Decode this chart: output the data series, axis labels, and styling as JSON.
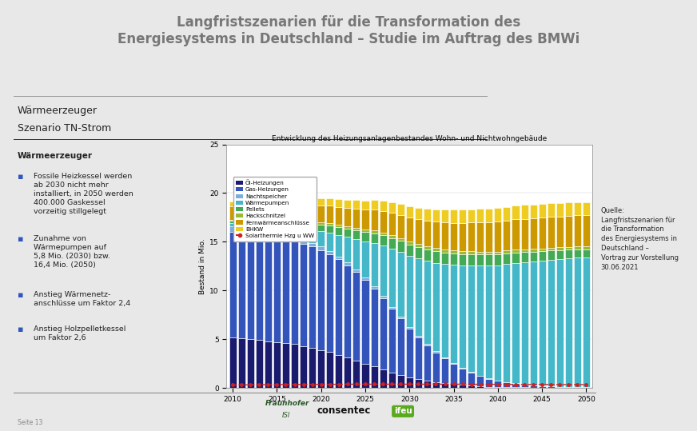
{
  "title": "Langfristszenarien für die Transformation des\nEnergiesystems in Deutschland – Studie im Auftrag des BMWi",
  "chart_title": "Entwicklung des Heizungsanlagenbestandes Wohn- und Nichtwohngebäude",
  "ylabel": "Bestand in Mio.",
  "subtitle_line1": "Wärmeerzeuger",
  "subtitle_line2": "Szenario TN-Strom",
  "years": [
    2010,
    2011,
    2012,
    2013,
    2014,
    2015,
    2016,
    2017,
    2018,
    2019,
    2020,
    2021,
    2022,
    2023,
    2024,
    2025,
    2026,
    2027,
    2028,
    2029,
    2030,
    2031,
    2032,
    2033,
    2034,
    2035,
    2036,
    2037,
    2038,
    2039,
    2040,
    2041,
    2042,
    2043,
    2044,
    2045,
    2046,
    2047,
    2048,
    2049,
    2050
  ],
  "oel": [
    5.2,
    5.1,
    5.0,
    4.9,
    4.8,
    4.7,
    4.6,
    4.5,
    4.3,
    4.1,
    3.9,
    3.7,
    3.4,
    3.1,
    2.8,
    2.5,
    2.2,
    1.9,
    1.6,
    1.35,
    1.1,
    0.9,
    0.75,
    0.6,
    0.48,
    0.38,
    0.3,
    0.23,
    0.17,
    0.13,
    0.1,
    0.08,
    0.06,
    0.05,
    0.04,
    0.03,
    0.03,
    0.02,
    0.02,
    0.01,
    0.01
  ],
  "gas": [
    10.8,
    10.85,
    10.85,
    10.8,
    10.75,
    10.7,
    10.65,
    10.6,
    10.5,
    10.4,
    10.25,
    10.05,
    9.8,
    9.5,
    9.1,
    8.6,
    8.0,
    7.3,
    6.55,
    5.8,
    5.0,
    4.3,
    3.65,
    3.05,
    2.55,
    2.1,
    1.7,
    1.35,
    1.05,
    0.82,
    0.62,
    0.48,
    0.37,
    0.28,
    0.21,
    0.16,
    0.12,
    0.09,
    0.07,
    0.05,
    0.04
  ],
  "nachtspeicher": [
    0.55,
    0.53,
    0.51,
    0.49,
    0.47,
    0.45,
    0.43,
    0.41,
    0.39,
    0.37,
    0.35,
    0.33,
    0.31,
    0.29,
    0.27,
    0.25,
    0.23,
    0.21,
    0.19,
    0.17,
    0.15,
    0.13,
    0.11,
    0.1,
    0.09,
    0.08,
    0.07,
    0.06,
    0.06,
    0.05,
    0.05,
    0.04,
    0.04,
    0.03,
    0.03,
    0.03,
    0.02,
    0.02,
    0.02,
    0.02,
    0.02
  ],
  "waermepumpen": [
    0.35,
    0.4,
    0.45,
    0.52,
    0.6,
    0.7,
    0.85,
    1.0,
    1.18,
    1.38,
    1.6,
    1.88,
    2.2,
    2.6,
    3.1,
    3.7,
    4.45,
    5.2,
    5.95,
    6.65,
    7.3,
    7.95,
    8.55,
    9.1,
    9.6,
    10.05,
    10.5,
    10.9,
    11.25,
    11.55,
    11.8,
    12.1,
    12.35,
    12.55,
    12.7,
    12.85,
    13.0,
    13.1,
    13.2,
    13.3,
    13.35
  ],
  "pellets": [
    0.28,
    0.3,
    0.33,
    0.36,
    0.4,
    0.44,
    0.49,
    0.54,
    0.59,
    0.64,
    0.69,
    0.74,
    0.79,
    0.85,
    0.9,
    0.96,
    1.01,
    1.06,
    1.1,
    1.13,
    1.16,
    1.18,
    1.19,
    1.2,
    1.2,
    1.19,
    1.18,
    1.17,
    1.15,
    1.13,
    1.11,
    1.08,
    1.05,
    1.02,
    0.99,
    0.96,
    0.93,
    0.9,
    0.87,
    0.84,
    0.81
  ],
  "hackschnitzel": [
    0.1,
    0.11,
    0.12,
    0.13,
    0.14,
    0.15,
    0.16,
    0.17,
    0.18,
    0.19,
    0.2,
    0.21,
    0.22,
    0.23,
    0.24,
    0.25,
    0.26,
    0.27,
    0.28,
    0.29,
    0.3,
    0.31,
    0.31,
    0.32,
    0.32,
    0.32,
    0.32,
    0.32,
    0.32,
    0.31,
    0.31,
    0.31,
    0.3,
    0.3,
    0.3,
    0.29,
    0.29,
    0.29,
    0.28,
    0.28,
    0.27
  ],
  "fernwaerme": [
    1.4,
    1.42,
    1.44,
    1.46,
    1.49,
    1.52,
    1.55,
    1.58,
    1.62,
    1.67,
    1.72,
    1.78,
    1.84,
    1.91,
    1.98,
    2.06,
    2.14,
    2.22,
    2.3,
    2.38,
    2.46,
    2.54,
    2.62,
    2.7,
    2.77,
    2.83,
    2.89,
    2.94,
    2.98,
    3.02,
    3.06,
    3.09,
    3.12,
    3.14,
    3.16,
    3.17,
    3.18,
    3.19,
    3.19,
    3.2,
    3.2
  ],
  "bhkw": [
    0.45,
    0.47,
    0.5,
    0.53,
    0.56,
    0.59,
    0.62,
    0.65,
    0.68,
    0.71,
    0.74,
    0.77,
    0.8,
    0.84,
    0.88,
    0.93,
    0.98,
    1.03,
    1.07,
    1.11,
    1.15,
    1.2,
    1.24,
    1.27,
    1.3,
    1.33,
    1.35,
    1.37,
    1.38,
    1.39,
    1.4,
    1.4,
    1.4,
    1.4,
    1.4,
    1.39,
    1.39,
    1.38,
    1.38,
    1.37,
    1.36
  ],
  "solar": [
    0.3,
    0.31,
    0.32,
    0.33,
    0.33,
    0.34,
    0.35,
    0.35,
    0.36,
    0.36,
    0.37,
    0.37,
    0.37,
    0.38,
    0.38,
    0.38,
    0.38,
    0.38,
    0.38,
    0.38,
    0.38,
    0.38,
    0.38,
    0.38,
    0.38,
    0.38,
    0.38,
    0.37,
    0.37,
    0.37,
    0.37,
    0.36,
    0.36,
    0.36,
    0.35,
    0.35,
    0.35,
    0.34,
    0.34,
    0.34,
    0.33
  ],
  "colors": {
    "oel": "#1a1a6e",
    "gas": "#3355bb",
    "nachtspeicher": "#7aaee0",
    "waermepumpen": "#44b8c8",
    "pellets": "#44aa55",
    "hackschnitzel": "#99bb33",
    "fernwaerme": "#cc9900",
    "bhkw": "#eecc22",
    "solar": "#cc2222"
  },
  "legend_labels": [
    "Öl-Heizungen",
    "Gas-Heizungen",
    "Nachtspeicher",
    "Wärmepumpen",
    "Pellets",
    "Hackschnitzel",
    "Fernwärmeanschlüsse",
    "BHKW",
    "Solarthermie Hzg u WW"
  ],
  "ylim": [
    0,
    25
  ],
  "yticks": [
    0,
    5,
    10,
    15,
    20,
    25
  ],
  "bg_color": "#ffffff",
  "outer_bg": "#e8e8e8",
  "title_color": "#777777",
  "text_color": "#222222",
  "bullet_color": "#3355bb"
}
